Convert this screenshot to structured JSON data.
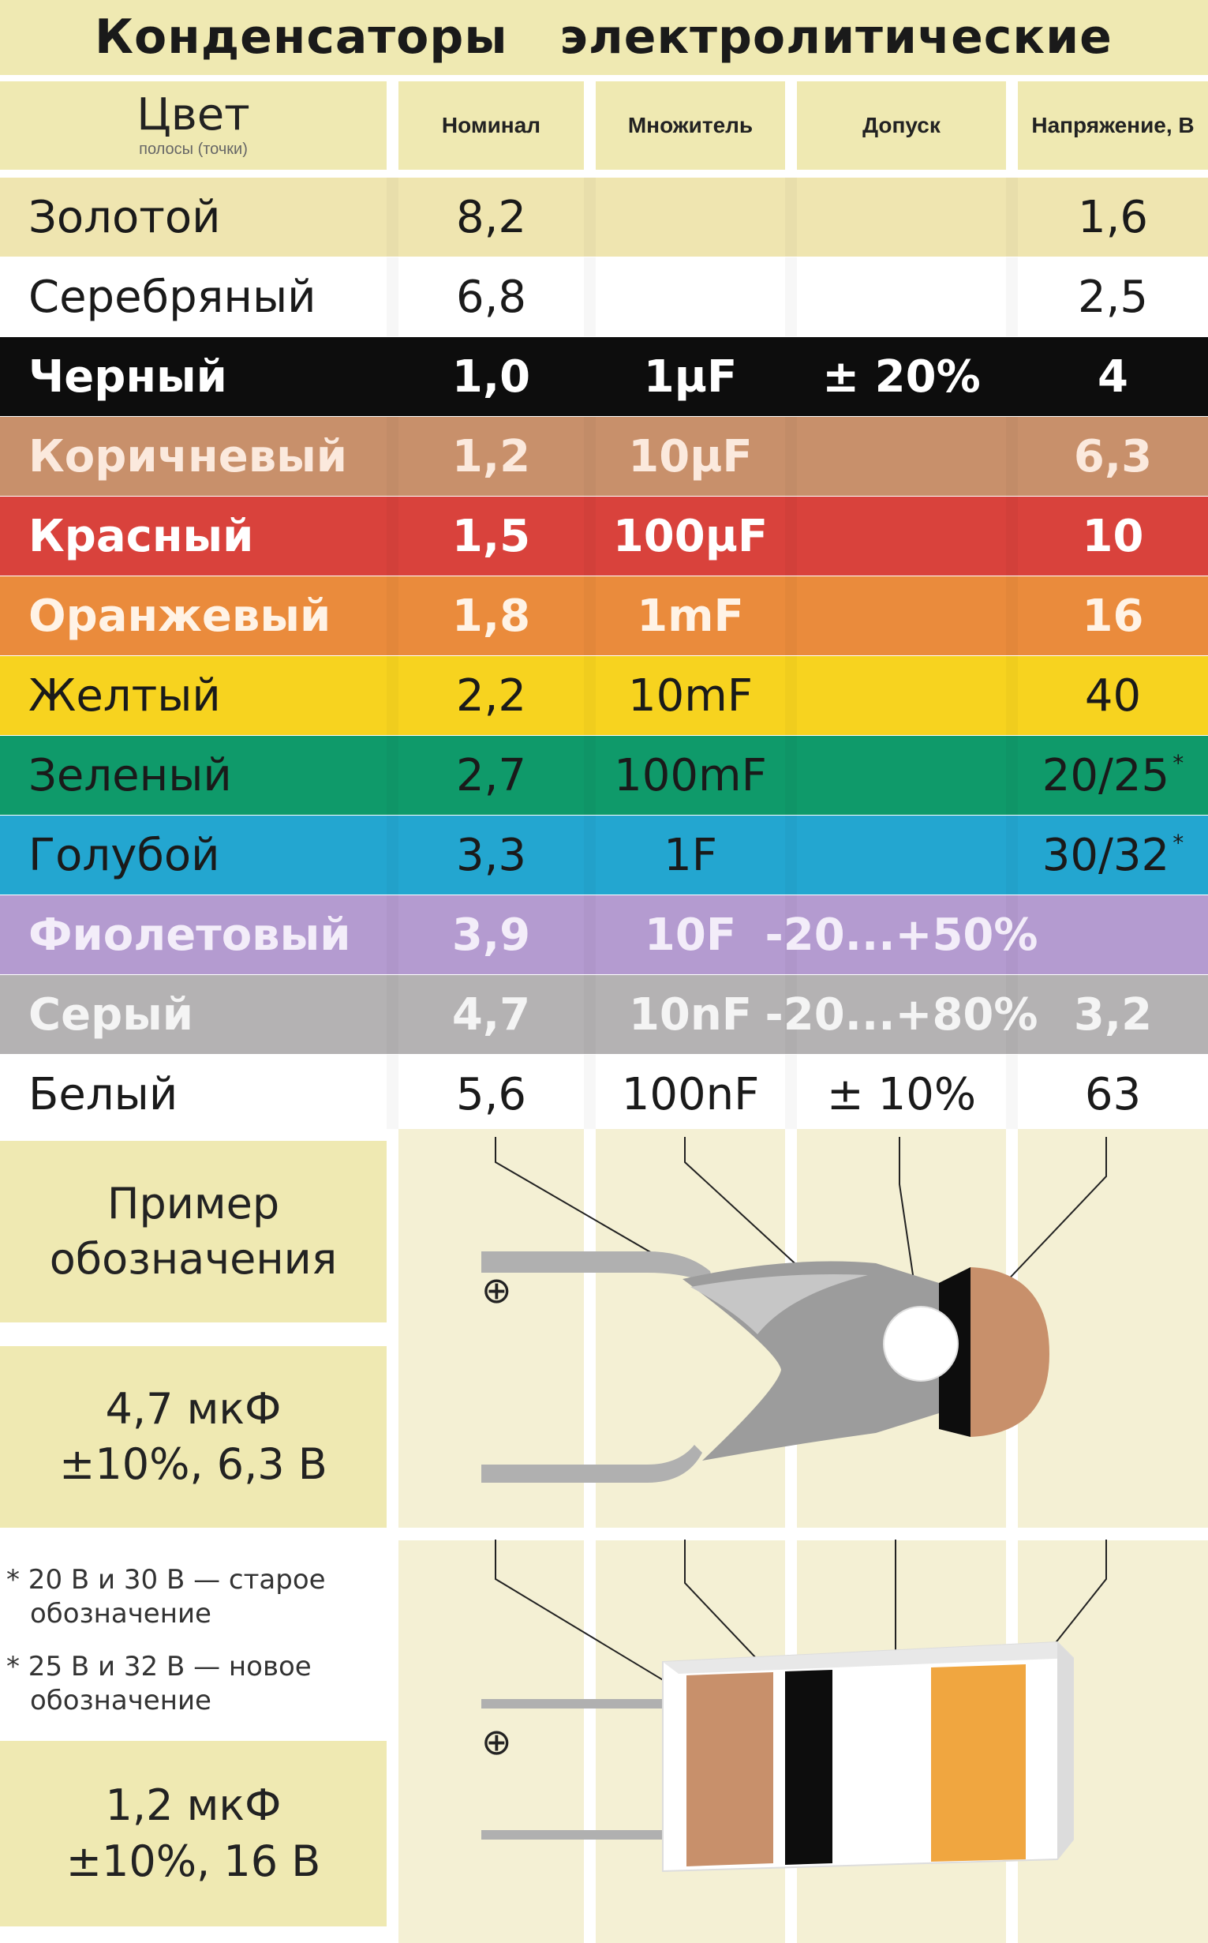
{
  "title": "Конденсаторы   электролитические",
  "headers": {
    "color_main": "Цвет",
    "color_sub": "полосы (точки)",
    "nominal": "Номинал",
    "multiplier": "Множитель",
    "tolerance": "Допуск",
    "voltage": "Напряжение, В"
  },
  "rows": [
    {
      "name": "Золотой",
      "nominal": "8,2",
      "multiplier": "",
      "tolerance": "",
      "voltage": "1,6",
      "star": "",
      "bg": "#efe5b0",
      "fg": "#1a1a1a"
    },
    {
      "name": "Серебряный",
      "nominal": "6,8",
      "multiplier": "",
      "tolerance": "",
      "voltage": "2,5",
      "star": "",
      "bg": "#ffffff",
      "fg": "#1a1a1a"
    },
    {
      "name": "Черный",
      "nominal": "1,0",
      "multiplier": "1µF",
      "tolerance": "± 20%",
      "voltage": "4",
      "star": "",
      "bg": "#0d0d0d",
      "fg": "#ffffff"
    },
    {
      "name": "Коричневый",
      "nominal": "1,2",
      "multiplier": "10µF",
      "tolerance": "",
      "voltage": "6,3",
      "star": "",
      "bg": "#c8906b",
      "fg": "#fbe9dd"
    },
    {
      "name": "Красный",
      "nominal": "1,5",
      "multiplier": "100µF",
      "tolerance": "",
      "voltage": "10",
      "star": "",
      "bg": "#d9423c",
      "fg": "#ffffff"
    },
    {
      "name": "Оранжевый",
      "nominal": "1,8",
      "multiplier": "1mF",
      "tolerance": "",
      "voltage": "16",
      "star": "",
      "bg": "#ea8b3c",
      "fg": "#fff3e6"
    },
    {
      "name": "Желтый",
      "nominal": "2,2",
      "multiplier": "10mF",
      "tolerance": "",
      "voltage": "40",
      "star": "",
      "bg": "#f7d31f",
      "fg": "#1a1a1a"
    },
    {
      "name": "Зеленый",
      "nominal": "2,7",
      "multiplier": "100mF",
      "tolerance": "",
      "voltage": "20/25",
      "star": "*",
      "bg": "#0f9a6a",
      "fg": "#1a1a1a"
    },
    {
      "name": "Голубой",
      "nominal": "3,3",
      "multiplier": "1F",
      "tolerance": "",
      "voltage": "30/32",
      "star": "*",
      "bg": "#23a6d0",
      "fg": "#1a1a1a"
    },
    {
      "name": "Фиолетовый",
      "nominal": "3,9",
      "multiplier": "10F",
      "tolerance": "-20...+50%",
      "voltage": "",
      "star": "",
      "bg": "#b49bd0",
      "fg": "#f3edf9"
    },
    {
      "name": "Серый",
      "nominal": "4,7",
      "multiplier": "10nF",
      "tolerance": "-20...+80%",
      "voltage": "3,2",
      "star": "",
      "bg": "#b4b2b3",
      "fg": "#f4f4f4"
    },
    {
      "name": "Белый",
      "nominal": "5,6",
      "multiplier": "100nF",
      "tolerance": "± 10%",
      "voltage": "63",
      "star": "",
      "bg": "#ffffff",
      "fg": "#1a1a1a"
    }
  ],
  "example": {
    "label_line1": "Пример",
    "label_line2": "обозначения",
    "ex1_line1": "4,7 мкФ",
    "ex1_line2": "±10%, 6,3 В",
    "ex2_line1": "1,2 мкФ",
    "ex2_line2": "±10%, 16 В",
    "plus_symbol": "⊕"
  },
  "notes": {
    "note1_line1": "* 20 В и 30 В — старое",
    "note1_line2": "обозначение",
    "note2_line1": "* 25 В и 32 В — новое",
    "note2_line2": "обозначение"
  },
  "colors": {
    "panel_bg": "#efe9b2",
    "lower_bg": "#f3efcf",
    "capacitor_body": "#9a9a9a",
    "band_brown": "#c8906b",
    "band_black": "#0d0d0d",
    "band_orange": "#f0a640"
  }
}
